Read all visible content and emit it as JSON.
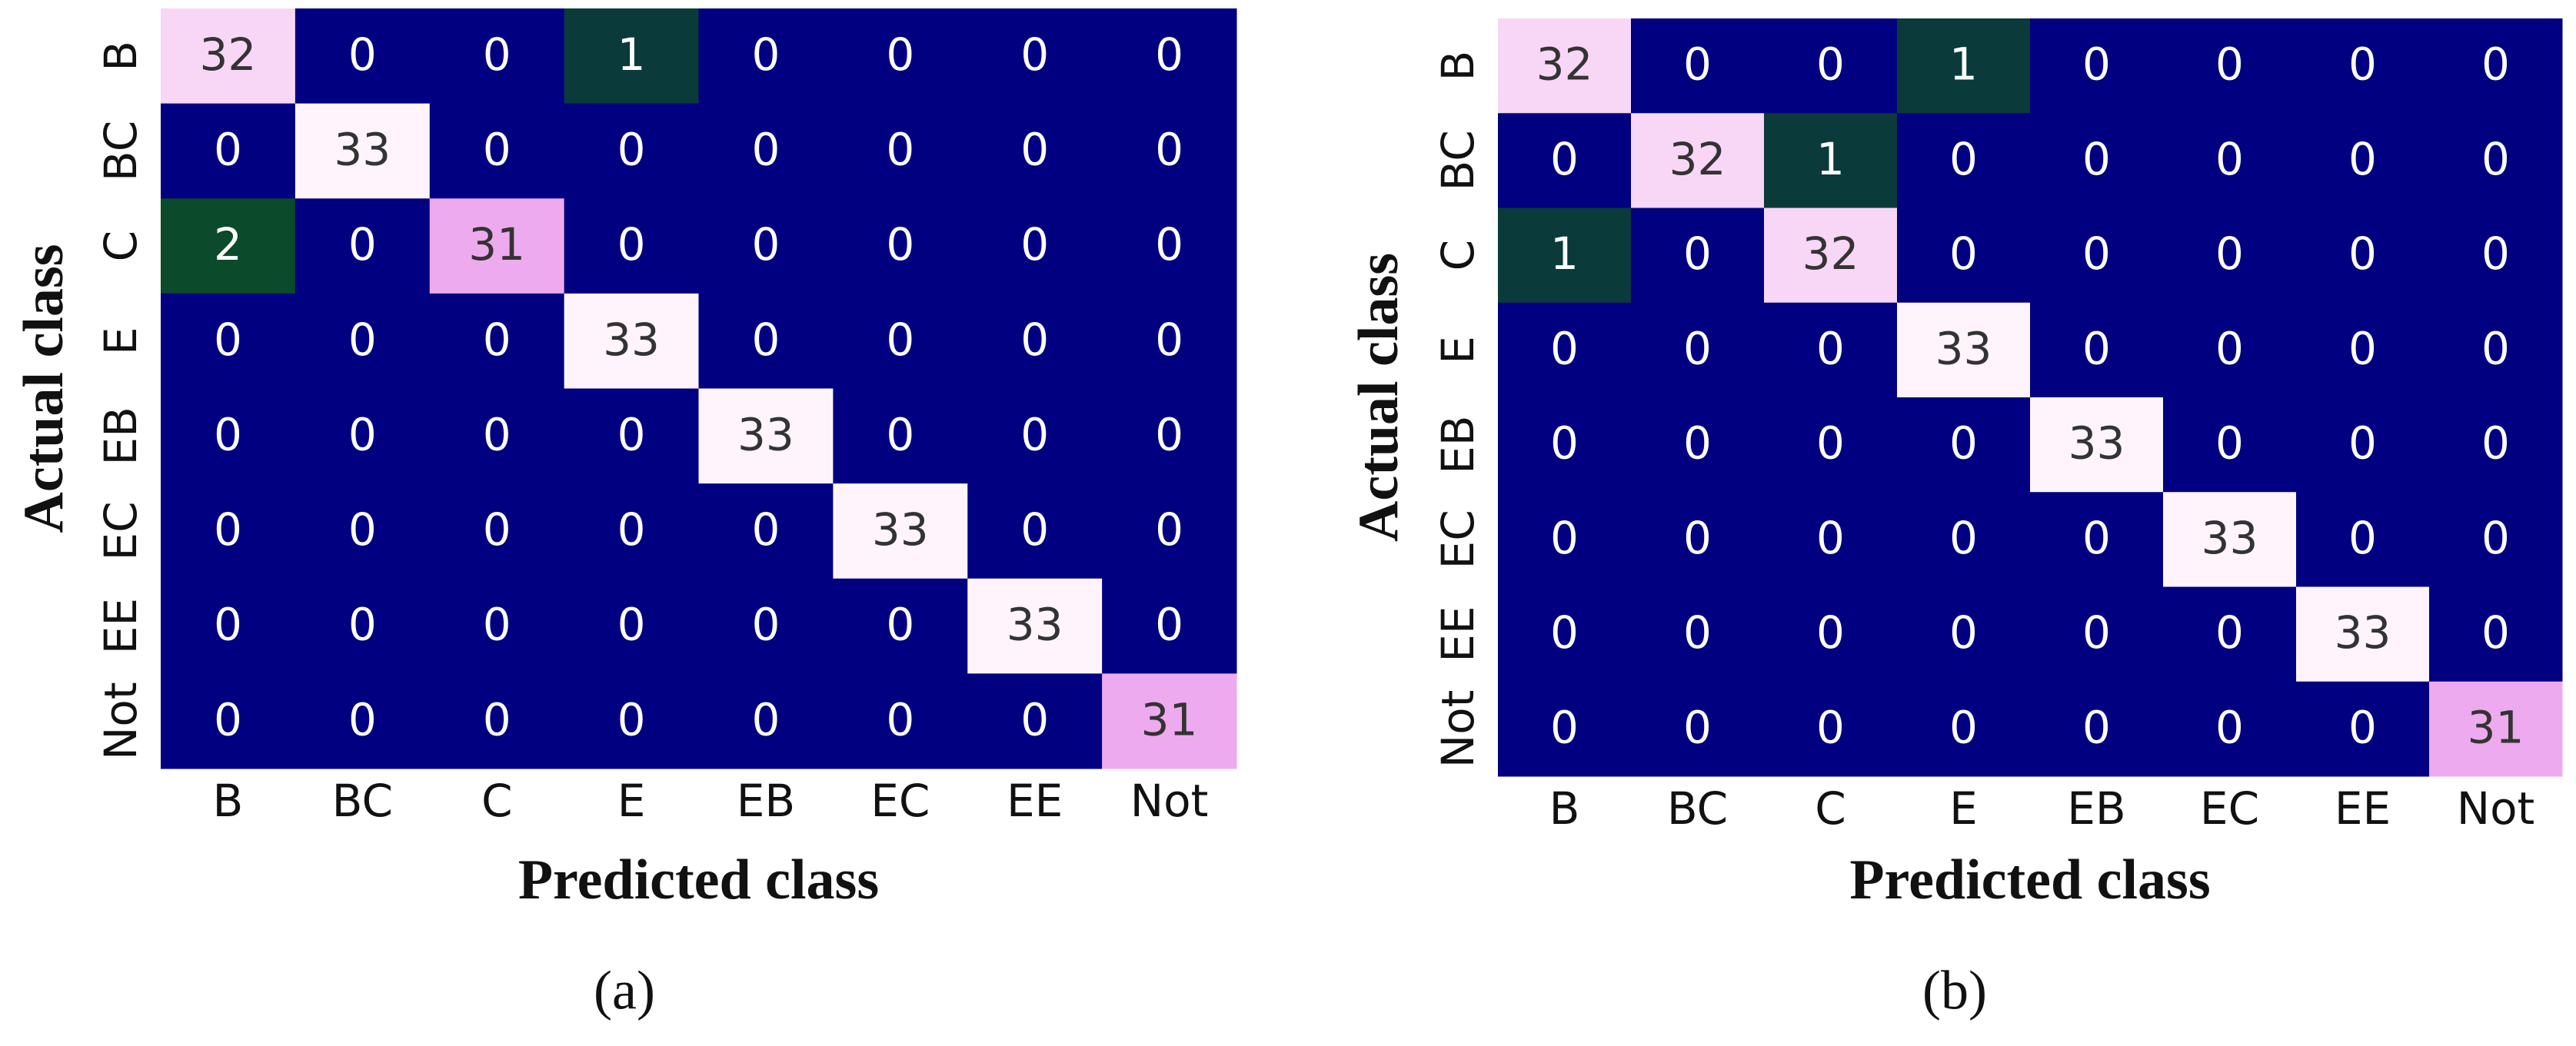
{
  "chart_data": [
    {
      "type": "heatmap",
      "caption": "(a)",
      "x_label": "Predicted class",
      "y_label": "Actual class",
      "categories": [
        "B",
        "BC",
        "C",
        "E",
        "EB",
        "EC",
        "EE",
        "Not"
      ],
      "y_categories": [
        "B",
        "BC",
        "C",
        "E",
        "EB",
        "EC",
        "EE",
        "Not"
      ],
      "values": [
        [
          32,
          0,
          0,
          1,
          0,
          0,
          0,
          0
        ],
        [
          0,
          33,
          0,
          0,
          0,
          0,
          0,
          0
        ],
        [
          2,
          0,
          31,
          0,
          0,
          0,
          0,
          0
        ],
        [
          0,
          0,
          0,
          33,
          0,
          0,
          0,
          0
        ],
        [
          0,
          0,
          0,
          0,
          33,
          0,
          0,
          0
        ],
        [
          0,
          0,
          0,
          0,
          0,
          33,
          0,
          0
        ],
        [
          0,
          0,
          0,
          0,
          0,
          0,
          33,
          0
        ],
        [
          0,
          0,
          0,
          0,
          0,
          0,
          0,
          31
        ]
      ],
      "colormap": [
        {
          "value": 0,
          "color": "#000080"
        },
        {
          "value": 1,
          "color": "#0a3a3a"
        },
        {
          "value": 2,
          "color": "#0b4a2a"
        },
        {
          "value": 31,
          "color": "#eeaaee"
        },
        {
          "value": 32,
          "color": "#f8d6f6"
        },
        {
          "value": 33,
          "color": "#fff4fc"
        }
      ]
    },
    {
      "type": "heatmap",
      "caption": "(b)",
      "x_label": "Predicted class",
      "y_label": "Actual class",
      "categories": [
        "B",
        "BC",
        "C",
        "E",
        "EB",
        "EC",
        "EE",
        "Not"
      ],
      "y_categories": [
        "B",
        "BC",
        "C",
        "E",
        "EB",
        "EC",
        "EE",
        "Not"
      ],
      "values": [
        [
          32,
          0,
          0,
          1,
          0,
          0,
          0,
          0
        ],
        [
          0,
          32,
          1,
          0,
          0,
          0,
          0,
          0
        ],
        [
          1,
          0,
          32,
          0,
          0,
          0,
          0,
          0
        ],
        [
          0,
          0,
          0,
          33,
          0,
          0,
          0,
          0
        ],
        [
          0,
          0,
          0,
          0,
          33,
          0,
          0,
          0
        ],
        [
          0,
          0,
          0,
          0,
          0,
          33,
          0,
          0
        ],
        [
          0,
          0,
          0,
          0,
          0,
          0,
          33,
          0
        ],
        [
          0,
          0,
          0,
          0,
          0,
          0,
          0,
          31
        ]
      ],
      "colormap": [
        {
          "value": 0,
          "color": "#000080"
        },
        {
          "value": 1,
          "color": "#0a3a3a"
        },
        {
          "value": 2,
          "color": "#0b4a2a"
        },
        {
          "value": 31,
          "color": "#eeaaee"
        },
        {
          "value": 32,
          "color": "#f8d6f6"
        },
        {
          "value": 33,
          "color": "#fff4fc"
        }
      ]
    }
  ]
}
